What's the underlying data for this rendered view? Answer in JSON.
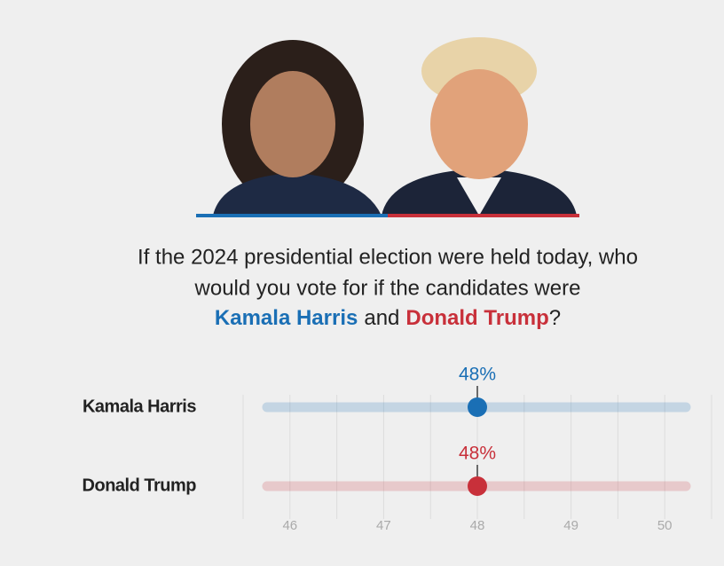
{
  "chart_data": {
    "type": "dot",
    "title_parts": [
      "If the 2024 presidential election were held today, who",
      "would you vote for if the candidates were",
      "Kamala Harris",
      "and",
      "Donald Trump",
      "?"
    ],
    "categories": [
      "Kamala Harris",
      "Donald Trump"
    ],
    "values": [
      48,
      48
    ],
    "value_labels": [
      "48%",
      "48%"
    ],
    "colors": [
      "#1a6fb5",
      "#c8303a"
    ],
    "xlim": [
      45.5,
      50.5
    ],
    "xticks": [
      46,
      47,
      48,
      49,
      50
    ],
    "minor_xticks": [
      45.5,
      46.5,
      47.5,
      48.5,
      49.5,
      50.5
    ],
    "grid": true
  }
}
